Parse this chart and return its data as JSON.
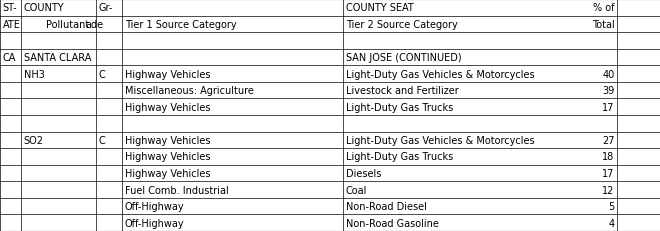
{
  "header_rows": [
    [
      "ST-",
      "COUNTY",
      "Gr-",
      "",
      "COUNTY SEAT",
      "% of"
    ],
    [
      "ATE",
      "",
      "Pollutant",
      "ade",
      "Tier 1 Source Category",
      "Tier 2 Source Category",
      "Total"
    ],
    [
      "",
      "",
      "",
      "",
      "",
      ""
    ]
  ],
  "all_rows": [
    [
      "ST-",
      "COUNTY",
      "Gr-",
      "",
      "COUNTY SEAT",
      "% of"
    ],
    [
      "ATE",
      "Pollutant",
      "ade",
      "Tier 1 Source Category",
      "Tier 2 Source Category",
      "Total"
    ],
    [
      "",
      "",
      "",
      "",
      "",
      ""
    ],
    [
      "CA",
      "SANTA CLARA",
      "",
      "",
      "SAN JOSE (CONTINUED)",
      ""
    ],
    [
      "",
      "NH3",
      "C",
      "Highway Vehicles",
      "Light-Duty Gas Vehicles & Motorcycles",
      "40"
    ],
    [
      "",
      "",
      "",
      "Miscellaneous: Agriculture",
      "Livestock and Fertilizer",
      "39"
    ],
    [
      "",
      "",
      "",
      "Highway Vehicles",
      "Light-Duty Gas Trucks",
      "17"
    ],
    [
      "",
      "",
      "",
      "",
      "",
      ""
    ],
    [
      "",
      "SO2",
      "C",
      "Highway Vehicles",
      "Light-Duty Gas Vehicles & Motorcycles",
      "27"
    ],
    [
      "",
      "",
      "",
      "Highway Vehicles",
      "Light-Duty Gas Trucks",
      "18"
    ],
    [
      "",
      "",
      "",
      "Highway Vehicles",
      "Diesels",
      "17"
    ],
    [
      "",
      "",
      "",
      "Fuel Comb. Industrial",
      "Coal",
      "12"
    ],
    [
      "",
      "",
      "",
      "Off-Highway",
      "Non-Road Diesel",
      "5"
    ],
    [
      "",
      "",
      "",
      "Off-Highway",
      "Non-Road Gasoline",
      "4"
    ]
  ],
  "col_bounds": [
    0.0,
    0.032,
    0.105,
    0.14,
    0.185,
    0.52,
    0.935,
    1.0
  ],
  "col_aligns": [
    "left",
    "left",
    "left",
    "left",
    "left",
    "left",
    "right"
  ],
  "col_padding": [
    0.004,
    0.004,
    0.004,
    0.004,
    0.004,
    0.004,
    -0.004
  ],
  "bg_color": "#ffffff",
  "line_color": "#000000",
  "font_size": 7.0
}
